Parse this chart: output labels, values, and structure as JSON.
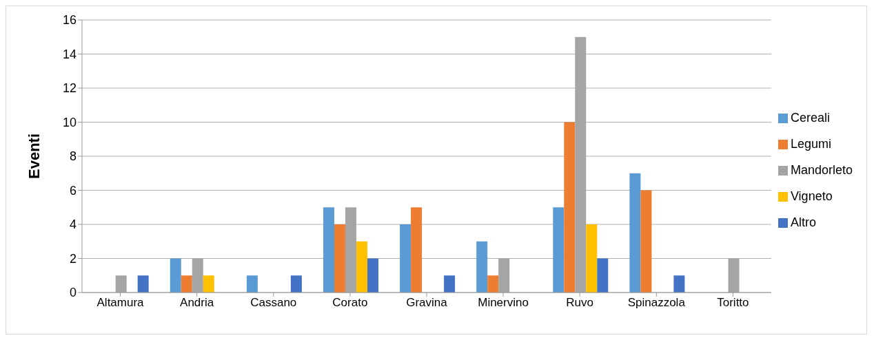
{
  "chart_data": {
    "type": "bar",
    "ylabel": "Eventi",
    "categories": [
      "Altamura",
      "Andria",
      "Cassano",
      "Corato",
      "Gravina",
      "Minervino",
      "Ruvo",
      "Spinazzola",
      "Toritto"
    ],
    "series": [
      {
        "name": "Cereali",
        "color": "#5b9bd5",
        "values": [
          0,
          2,
          1,
          5,
          4,
          3,
          5,
          7,
          0
        ]
      },
      {
        "name": "Legumi",
        "color": "#ed7d31",
        "values": [
          0,
          1,
          0,
          4,
          5,
          1,
          10,
          6,
          0
        ]
      },
      {
        "name": "Mandorleto",
        "color": "#a5a5a5",
        "values": [
          1,
          2,
          0,
          5,
          0,
          2,
          15,
          0,
          2
        ]
      },
      {
        "name": "Vigneto",
        "color": "#ffc000",
        "values": [
          0,
          1,
          0,
          3,
          0,
          0,
          4,
          0,
          0
        ]
      },
      {
        "name": "Altro",
        "color": "#4472c4",
        "values": [
          1,
          0,
          1,
          2,
          1,
          0,
          2,
          1,
          0
        ]
      }
    ],
    "ylim": [
      0,
      16
    ],
    "yticks": [
      0,
      2,
      4,
      6,
      8,
      10,
      12,
      14,
      16
    ],
    "grid": "y",
    "legend": "right"
  }
}
